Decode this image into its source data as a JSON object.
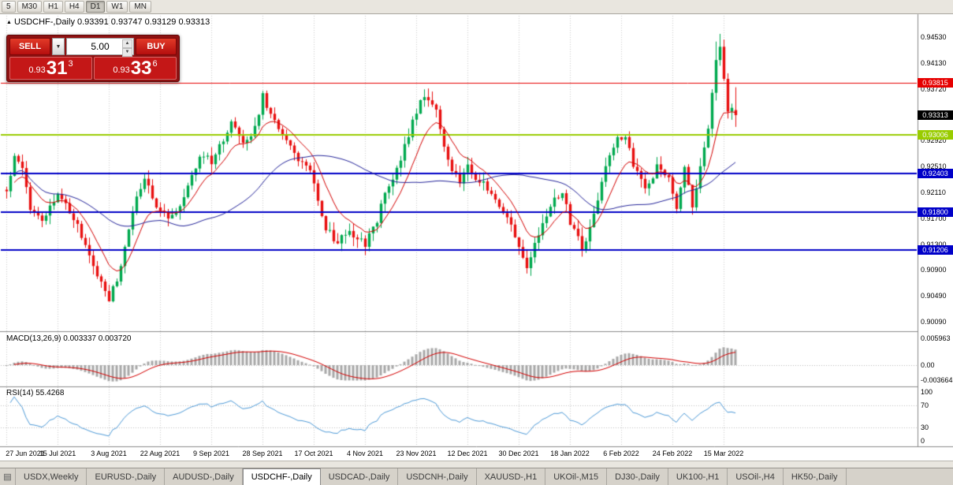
{
  "toolbar": {
    "timeframes": [
      "5",
      "M30",
      "H1",
      "H4",
      "D1",
      "W1",
      "MN"
    ],
    "active_timeframe": "D1"
  },
  "chart_header": {
    "title_text": "USDCHF-,Daily  0.93391 0.93747 0.93129 0.93313"
  },
  "trade_panel": {
    "sell_label": "SELL",
    "buy_label": "BUY",
    "volume_value": "5.00",
    "sell_price_prefix": "0.93",
    "sell_price_big": "31",
    "sell_price_sup": "3",
    "buy_price_prefix": "0.93",
    "buy_price_big": "33",
    "buy_price_sup": "6"
  },
  "price_axis": {
    "ticks": [
      {
        "label": "0.94530",
        "value": 0.9453
      },
      {
        "label": "0.94130",
        "value": 0.9413
      },
      {
        "label": "0.93720",
        "value": 0.9372
      },
      {
        "label": "0.93310",
        "value": 0.9331
      },
      {
        "label": "0.92920",
        "value": 0.9292
      },
      {
        "label": "0.92510",
        "value": 0.9251
      },
      {
        "label": "0.92110",
        "value": 0.9211
      },
      {
        "label": "0.91700",
        "value": 0.917
      },
      {
        "label": "0.91300",
        "value": 0.913
      },
      {
        "label": "0.90900",
        "value": 0.909
      },
      {
        "label": "0.90490",
        "value": 0.9049
      },
      {
        "label": "0.90090",
        "value": 0.9009
      }
    ]
  },
  "levels": [
    {
      "label": "0.93815",
      "value": 0.93815,
      "color": "#E60000",
      "width": 1,
      "text_color": "#ffffff"
    },
    {
      "label": "0.93006",
      "value": 0.93006,
      "color": "#99CC00",
      "width": 2,
      "text_color": "#ffffff"
    },
    {
      "label": "0.92403",
      "value": 0.92403,
      "color": "#0000C8",
      "width": 2,
      "text_color": "#ffffff"
    },
    {
      "label": "0.91800",
      "value": 0.918,
      "color": "#0000C8",
      "width": 2,
      "text_color": "#ffffff"
    },
    {
      "label": "0.91206",
      "value": 0.91206,
      "color": "#0000C8",
      "width": 2,
      "text_color": "#ffffff"
    }
  ],
  "current_price": {
    "label": "0.93313",
    "value": 0.93313,
    "bg": "#000000",
    "text_color": "#ffffff"
  },
  "macd_panel": {
    "label": "MACD(13,26,9)",
    "values": "0.003337 0.003720",
    "axis_labels": [
      "0.005963",
      "0.00",
      "-0.003664"
    ]
  },
  "rsi_panel": {
    "label": "RSI(14)",
    "value": "55.4268",
    "axis_labels": [
      "100",
      "70",
      "30",
      "0"
    ]
  },
  "date_axis": {
    "labels": [
      "27 Jun 2021",
      "15 Jul 2021",
      "3 Aug 2021",
      "22 Aug 2021",
      "9 Sep 2021",
      "28 Sep 2021",
      "17 Oct 2021",
      "4 Nov 2021",
      "23 Nov 2021",
      "12 Dec 2021",
      "30 Dec 2021",
      "18 Jan 2022",
      "6 Feb 2022",
      "24 Feb 2022",
      "15 Mar 2022"
    ]
  },
  "tabs": {
    "items": [
      "USDX,Weekly",
      "EURUSD-,Daily",
      "AUDUSD-,Daily",
      "USDCHF-,Daily",
      "USDCAD-,Daily",
      "USDCNH-,Daily",
      "XAUUSD-,H1",
      "UKOil-,M15",
      "DJ30-,Daily",
      "UK100-,H1",
      "USOil-,H4",
      "HK50-,Daily"
    ],
    "active": "USDCHF-,Daily"
  },
  "chart_data": {
    "type": "candlestick",
    "symbol": "USDCHF-",
    "timeframe": "Daily",
    "title": "USDCHF-,Daily",
    "ohlc_current": {
      "open": 0.93391,
      "high": 0.93747,
      "low": 0.93129,
      "close": 0.93313
    },
    "y_range": [
      0.8995,
      0.947
    ],
    "num_candles": 186,
    "anchors": [
      [
        0,
        0.9215
      ],
      [
        2,
        0.9265
      ],
      [
        4,
        0.924
      ],
      [
        6,
        0.9185
      ],
      [
        9,
        0.9165
      ],
      [
        13,
        0.9205
      ],
      [
        16,
        0.9175
      ],
      [
        20,
        0.913
      ],
      [
        23,
        0.9075
      ],
      [
        26,
        0.904
      ],
      [
        29,
        0.9095
      ],
      [
        32,
        0.918
      ],
      [
        35,
        0.9235
      ],
      [
        38,
        0.919
      ],
      [
        41,
        0.9165
      ],
      [
        44,
        0.918
      ],
      [
        47,
        0.9235
      ],
      [
        50,
        0.927
      ],
      [
        52,
        0.9255
      ],
      [
        55,
        0.929
      ],
      [
        57,
        0.932
      ],
      [
        60,
        0.929
      ],
      [
        63,
        0.931
      ],
      [
        65,
        0.936
      ],
      [
        67,
        0.933
      ],
      [
        70,
        0.929
      ],
      [
        73,
        0.9275
      ],
      [
        76,
        0.9255
      ],
      [
        78,
        0.923
      ],
      [
        81,
        0.916
      ],
      [
        84,
        0.913
      ],
      [
        87,
        0.916
      ],
      [
        89,
        0.9135
      ],
      [
        91,
        0.9125
      ],
      [
        94,
        0.917
      ],
      [
        97,
        0.9225
      ],
      [
        100,
        0.9265
      ],
      [
        103,
        0.932
      ],
      [
        106,
        0.9365
      ],
      [
        109,
        0.933
      ],
      [
        112,
        0.926
      ],
      [
        115,
        0.923
      ],
      [
        117,
        0.925
      ],
      [
        120,
        0.9235
      ],
      [
        123,
        0.921
      ],
      [
        126,
        0.919
      ],
      [
        129,
        0.914
      ],
      [
        132,
        0.9095
      ],
      [
        135,
        0.915
      ],
      [
        138,
        0.919
      ],
      [
        141,
        0.9215
      ],
      [
        143,
        0.916
      ],
      [
        146,
        0.9125
      ],
      [
        149,
        0.9175
      ],
      [
        152,
        0.9245
      ],
      [
        155,
        0.9295
      ],
      [
        157,
        0.93
      ],
      [
        159,
        0.9255
      ],
      [
        162,
        0.9225
      ],
      [
        165,
        0.9255
      ],
      [
        168,
        0.9235
      ],
      [
        170,
        0.9195
      ],
      [
        172,
        0.926
      ],
      [
        174,
        0.9195
      ],
      [
        176,
        0.9245
      ],
      [
        178,
        0.931
      ],
      [
        180,
        0.942
      ],
      [
        181,
        0.9435
      ],
      [
        182,
        0.939
      ],
      [
        183,
        0.933
      ],
      [
        184,
        0.9338
      ],
      [
        185,
        0.93313
      ]
    ],
    "wick_overrides": [
      [
        180,
        0.9446
      ],
      [
        181,
        0.9458
      ]
    ],
    "indicators": {
      "ma_fast": {
        "type": "ema",
        "period": 10,
        "color": "#D40000"
      },
      "ma_slow": {
        "type": "sma",
        "period": 40,
        "color": "#26269B"
      },
      "macd": {
        "fast": 13,
        "slow": 26,
        "signal": 9,
        "hist_color": "#A8A8A8",
        "signal_color": "#D40000"
      },
      "rsi": {
        "period": 14,
        "color": "#4F9BD8",
        "levels": [
          70,
          30
        ]
      }
    }
  },
  "colors": {
    "bull": "#00A94F",
    "bear": "#E81010",
    "grid": "#CDCDCD",
    "panel_border": "#8A8A8A"
  }
}
